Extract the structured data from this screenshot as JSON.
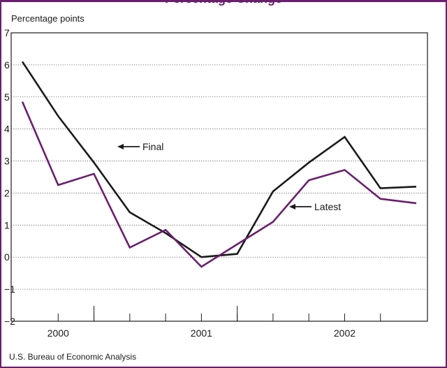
{
  "chart_data": {
    "type": "line",
    "title": "",
    "ylabel": "Percentage points",
    "xlabel": "",
    "ylim": [
      -2,
      7
    ],
    "yticks": [
      -2,
      -1,
      0,
      1,
      2,
      3,
      4,
      5,
      6,
      7
    ],
    "ytick_labels": [
      "−2",
      "−1",
      "0",
      "1",
      "2",
      "3",
      "4",
      "5",
      "6",
      "7"
    ],
    "x_start": 1999.875,
    "x_end": 2002.625,
    "x_year_labels": [
      {
        "label": "2000",
        "x": 2000.125
      },
      {
        "label": "2001",
        "x": 2001.125
      },
      {
        "label": "2002",
        "x": 2002.125
      }
    ],
    "x_minor_ticks": [
      2000.125,
      2000.375,
      2000.625,
      2000.875,
      2001.125,
      2001.375,
      2001.625,
      2001.875,
      2002.125,
      2002.375
    ],
    "x_major_ticks": [
      2000.375,
      2001.375
    ],
    "grid": "horizontal dotted",
    "series": [
      {
        "name": "Final",
        "color": "#1a1a1a",
        "x": [
          1999.875,
          2000.125,
          2000.375,
          2000.625,
          2000.875,
          2001.125,
          2001.375,
          2001.625,
          2001.875,
          2002.125,
          2002.375,
          2002.625
        ],
        "values": [
          6.1,
          4.4,
          2.95,
          1.4,
          0.75,
          0.0,
          0.1,
          2.05,
          2.95,
          3.75,
          2.15,
          2.2
        ]
      },
      {
        "name": "Latest",
        "color": "#6b1f6e",
        "x": [
          1999.875,
          2000.125,
          2000.375,
          2000.625,
          2000.875,
          2001.125,
          2001.375,
          2001.625,
          2001.875,
          2002.125,
          2002.375,
          2002.625
        ],
        "values": [
          4.85,
          2.25,
          2.6,
          0.3,
          0.85,
          -0.3,
          0.4,
          1.1,
          2.4,
          2.72,
          1.82,
          1.68
        ]
      }
    ],
    "annotations": [
      {
        "text": "Final",
        "series": "Final"
      },
      {
        "text": "Latest",
        "series": "Latest"
      }
    ]
  },
  "source": "U.S. Bureau of Economic Analysis",
  "clipped_title": "Percentage Change"
}
